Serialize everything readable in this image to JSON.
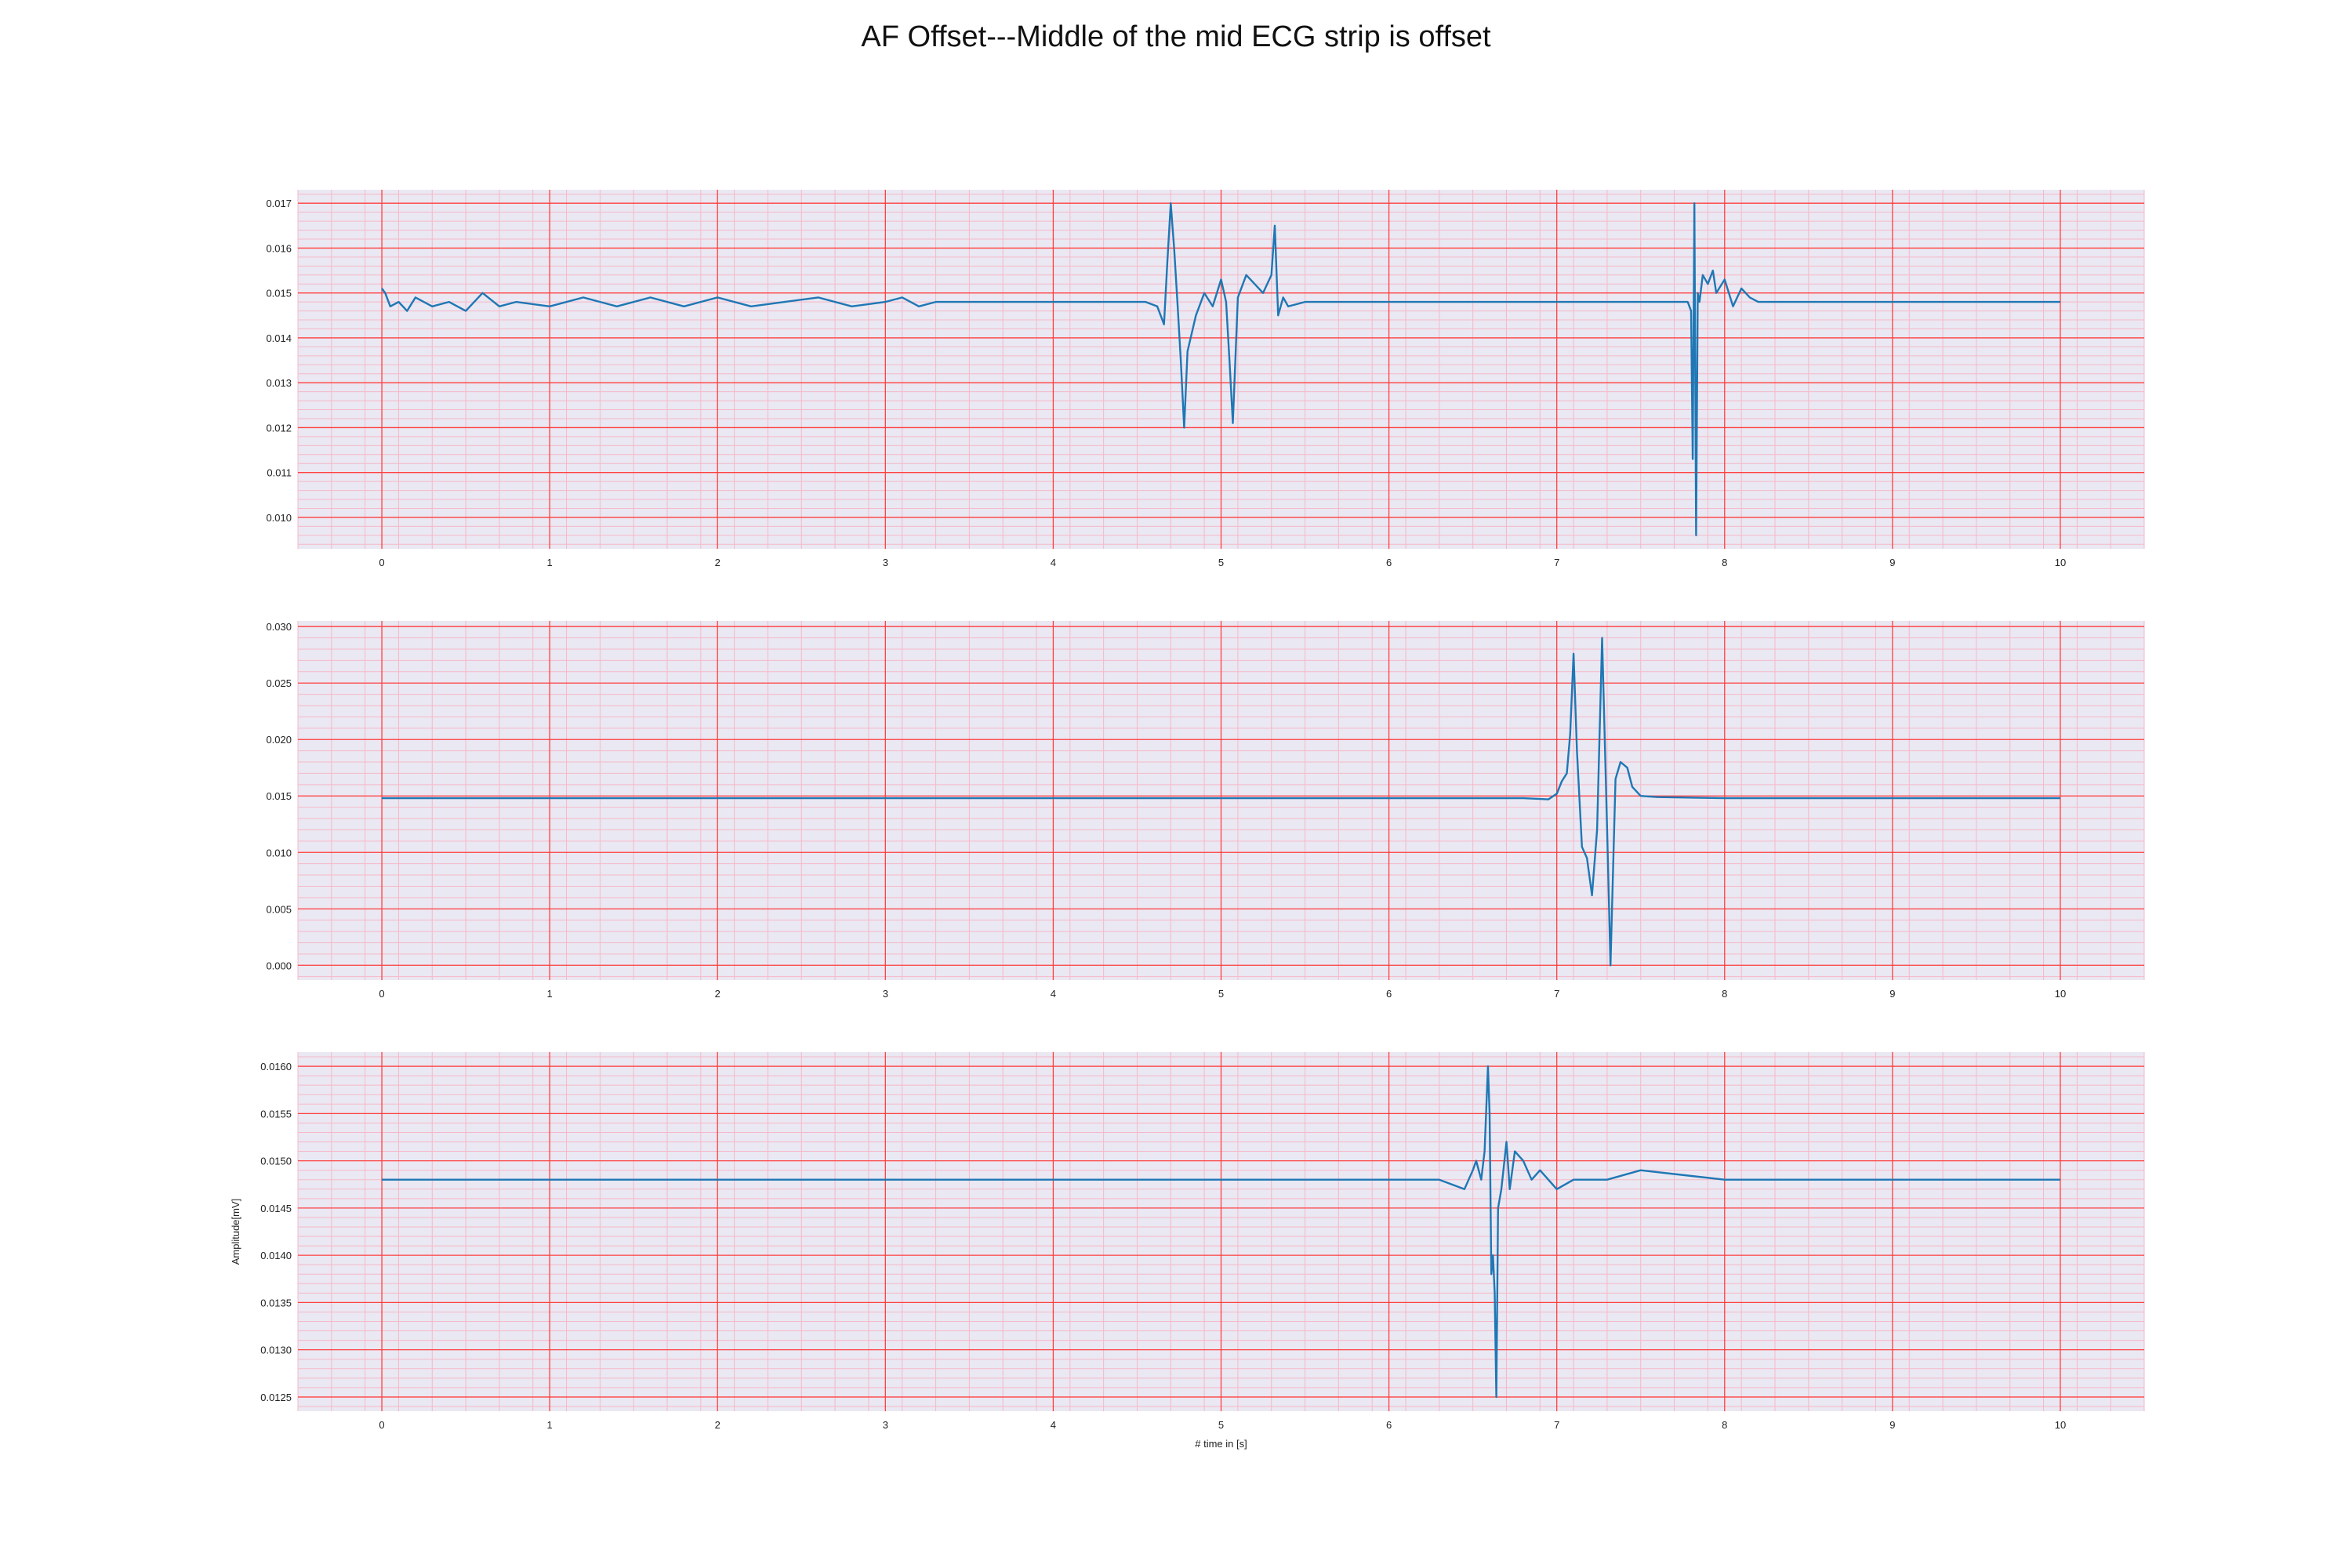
{
  "title": "AF Offset---Middle of the mid ECG strip is offset",
  "colors": {
    "background": "#eae8f2",
    "major_grid": "#ff4040",
    "minor_grid": "#f6b8c8",
    "signal": "#1f77b4",
    "text": "#222222"
  },
  "chart_data": [
    {
      "type": "line",
      "title": "",
      "xlabel": "",
      "ylabel": "",
      "grid": true,
      "xlim": [
        -0.5,
        10.5
      ],
      "ylim": [
        0.0093,
        0.0173
      ],
      "xticks": [
        0,
        1,
        2,
        3,
        4,
        5,
        6,
        7,
        8,
        9,
        10
      ],
      "yticks": [
        0.01,
        0.011,
        0.012,
        0.013,
        0.014,
        0.015,
        0.016,
        0.017
      ],
      "ytick_labels": [
        "0.010",
        "0.011",
        "0.012",
        "0.013",
        "0.014",
        "0.015",
        "0.016",
        "0.017"
      ],
      "series": [
        {
          "x": [
            0,
            0.02,
            0.05,
            0.1,
            0.15,
            0.2,
            0.3,
            0.4,
            0.5,
            0.6,
            0.7,
            0.8,
            1.0,
            1.2,
            1.4,
            1.6,
            1.8,
            2.0,
            2.2,
            2.4,
            2.6,
            2.8,
            3.0,
            3.1,
            3.2,
            3.3,
            3.5,
            3.8,
            4.0,
            4.2,
            4.4,
            4.55,
            4.62,
            4.66,
            4.68,
            4.7,
            4.72,
            4.74,
            4.76,
            4.78,
            4.8,
            4.85,
            4.9,
            4.95,
            5.0,
            5.03,
            5.05,
            5.07,
            5.1,
            5.15,
            5.2,
            5.25,
            5.3,
            5.32,
            5.34,
            5.37,
            5.4,
            5.5,
            5.7,
            6.0,
            6.5,
            7.0,
            7.5,
            7.7,
            7.78,
            7.8,
            7.81,
            7.82,
            7.83,
            7.84,
            7.85,
            7.87,
            7.9,
            7.93,
            7.95,
            8.0,
            8.05,
            8.1,
            8.15,
            8.2,
            8.3,
            8.5,
            9.0,
            9.5,
            10.0
          ],
          "y": [
            0.0151,
            0.015,
            0.0147,
            0.0148,
            0.0146,
            0.0149,
            0.0147,
            0.0148,
            0.0146,
            0.015,
            0.0147,
            0.0148,
            0.0147,
            0.0149,
            0.0147,
            0.0149,
            0.0147,
            0.0149,
            0.0147,
            0.0148,
            0.0149,
            0.0147,
            0.0148,
            0.0149,
            0.0147,
            0.0148,
            0.0148,
            0.0148,
            0.0148,
            0.0148,
            0.0148,
            0.0148,
            0.0147,
            0.0143,
            0.0157,
            0.017,
            0.016,
            0.0148,
            0.0135,
            0.012,
            0.0137,
            0.0145,
            0.015,
            0.0147,
            0.0153,
            0.0148,
            0.0135,
            0.0121,
            0.0149,
            0.0154,
            0.0152,
            0.015,
            0.0154,
            0.0165,
            0.0145,
            0.0149,
            0.0147,
            0.0148,
            0.0148,
            0.0148,
            0.0148,
            0.0148,
            0.0148,
            0.0148,
            0.0148,
            0.0146,
            0.0113,
            0.017,
            0.0096,
            0.015,
            0.0148,
            0.0154,
            0.0152,
            0.0155,
            0.015,
            0.0153,
            0.0147,
            0.0151,
            0.0149,
            0.0148,
            0.0148,
            0.0148,
            0.0148,
            0.0148,
            0.0148
          ]
        }
      ]
    },
    {
      "type": "line",
      "title": "",
      "xlabel": "",
      "ylabel": "",
      "grid": true,
      "xlim": [
        -0.5,
        10.5
      ],
      "ylim": [
        -0.0013,
        0.0305
      ],
      "xticks": [
        0,
        1,
        2,
        3,
        4,
        5,
        6,
        7,
        8,
        9,
        10
      ],
      "yticks": [
        0.0,
        0.005,
        0.01,
        0.015,
        0.02,
        0.025,
        0.03
      ],
      "ytick_labels": [
        "0.000",
        "0.005",
        "0.010",
        "0.015",
        "0.020",
        "0.025",
        "0.030"
      ],
      "series": [
        {
          "x": [
            0,
            1,
            2,
            3,
            4,
            5,
            6,
            6.8,
            6.95,
            7.0,
            7.03,
            7.06,
            7.08,
            7.1,
            7.12,
            7.15,
            7.18,
            7.21,
            7.24,
            7.27,
            7.3,
            7.32,
            7.35,
            7.38,
            7.42,
            7.45,
            7.5,
            7.6,
            8.0,
            9.0,
            10.0
          ],
          "y": [
            0.0148,
            0.0148,
            0.0148,
            0.0148,
            0.0148,
            0.0148,
            0.0148,
            0.0148,
            0.0147,
            0.0152,
            0.0163,
            0.017,
            0.0205,
            0.0276,
            0.019,
            0.0105,
            0.0095,
            0.0062,
            0.012,
            0.029,
            0.012,
            0.0,
            0.0165,
            0.018,
            0.0175,
            0.0158,
            0.015,
            0.0149,
            0.0148,
            0.0148,
            0.0148
          ]
        }
      ]
    },
    {
      "type": "line",
      "title": "",
      "xlabel": "# time in [s]",
      "ylabel": "Amplitude[mV]",
      "grid": true,
      "xlim": [
        -0.5,
        10.5
      ],
      "ylim": [
        0.01235,
        0.01615
      ],
      "xticks": [
        0,
        1,
        2,
        3,
        4,
        5,
        6,
        7,
        8,
        9,
        10
      ],
      "yticks": [
        0.0125,
        0.013,
        0.0135,
        0.014,
        0.0145,
        0.015,
        0.0155,
        0.016
      ],
      "ytick_labels": [
        "0.0125",
        "0.0130",
        "0.0135",
        "0.0140",
        "0.0145",
        "0.0150",
        "0.0155",
        "0.0160"
      ],
      "series": [
        {
          "x": [
            0,
            1,
            2,
            3,
            4,
            5,
            6,
            6.3,
            6.45,
            6.5,
            6.52,
            6.55,
            6.57,
            6.59,
            6.6,
            6.61,
            6.62,
            6.63,
            6.64,
            6.65,
            6.67,
            6.7,
            6.72,
            6.75,
            6.8,
            6.85,
            6.9,
            7.0,
            7.1,
            7.3,
            7.5,
            8.0,
            9.0,
            10.0
          ],
          "y": [
            0.0148,
            0.0148,
            0.0148,
            0.0148,
            0.0148,
            0.0148,
            0.0148,
            0.0148,
            0.0147,
            0.0149,
            0.015,
            0.0148,
            0.0151,
            0.016,
            0.0155,
            0.0138,
            0.014,
            0.0136,
            0.0125,
            0.0145,
            0.0147,
            0.0152,
            0.0147,
            0.0151,
            0.015,
            0.0148,
            0.0149,
            0.0147,
            0.0148,
            0.0148,
            0.0149,
            0.0148,
            0.0148,
            0.0148
          ]
        }
      ]
    }
  ]
}
